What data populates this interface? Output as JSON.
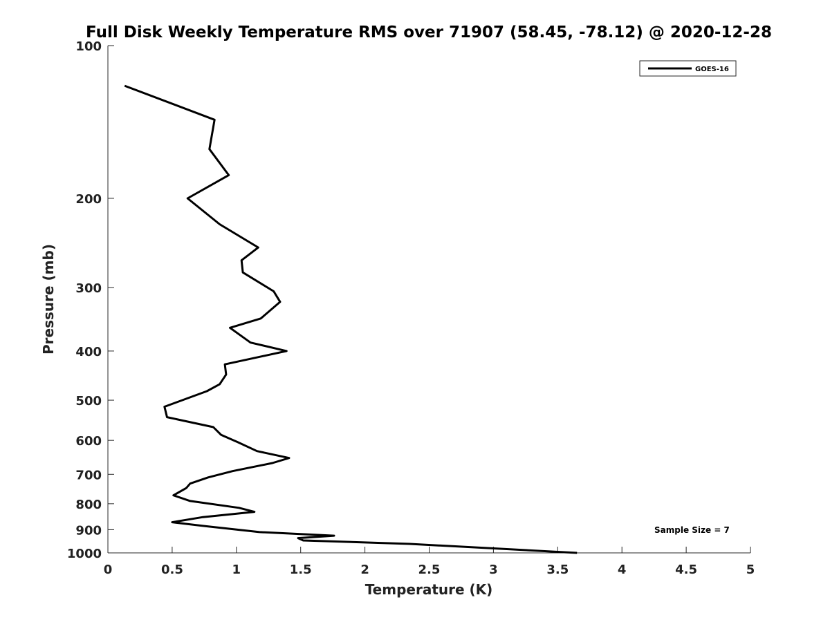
{
  "chart_data": {
    "type": "line",
    "title": "Full Disk Weekly Temperature RMS over 71907 (58.45, -78.12) @ 2020-12-28",
    "xlabel": "Temperature (K)",
    "ylabel": "Pressure (mb)",
    "xlim": [
      0,
      5
    ],
    "ylim": [
      100,
      1000
    ],
    "y_scale": "log",
    "y_reversed": true,
    "grid": false,
    "legend_position": "top-right",
    "x_ticks": [
      "0",
      "0.5",
      "1",
      "1.5",
      "2",
      "2.5",
      "3",
      "3.5",
      "4",
      "4.5",
      "5"
    ],
    "y_ticks": [
      "100",
      "200",
      "300",
      "400",
      "500",
      "600",
      "700",
      "800",
      "900",
      "1000"
    ],
    "annotation": "Sample Size = 7",
    "series": [
      {
        "name": "GOES-16",
        "color": "#000000",
        "points": [
          [
            0.13,
            120
          ],
          [
            0.83,
            140
          ],
          [
            0.79,
            160
          ],
          [
            0.94,
            180
          ],
          [
            0.62,
            200
          ],
          [
            0.87,
            225
          ],
          [
            1.17,
            250
          ],
          [
            1.04,
            265
          ],
          [
            1.05,
            280
          ],
          [
            1.29,
            305
          ],
          [
            1.34,
            320
          ],
          [
            1.19,
            345
          ],
          [
            0.95,
            360
          ],
          [
            1.11,
            385
          ],
          [
            1.39,
            400
          ],
          [
            0.91,
            425
          ],
          [
            0.92,
            445
          ],
          [
            0.87,
            465
          ],
          [
            0.77,
            480
          ],
          [
            0.44,
            515
          ],
          [
            0.46,
            540
          ],
          [
            0.82,
            565
          ],
          [
            0.88,
            585
          ],
          [
            1.01,
            605
          ],
          [
            1.16,
            630
          ],
          [
            1.41,
            650
          ],
          [
            1.28,
            665
          ],
          [
            0.97,
            690
          ],
          [
            0.78,
            710
          ],
          [
            0.64,
            730
          ],
          [
            0.61,
            745
          ],
          [
            0.51,
            770
          ],
          [
            0.64,
            790
          ],
          [
            1.02,
            815
          ],
          [
            1.14,
            830
          ],
          [
            0.74,
            850
          ],
          [
            0.5,
            870
          ],
          [
            0.75,
            885
          ],
          [
            1.18,
            910
          ],
          [
            1.76,
            925
          ],
          [
            1.48,
            935
          ],
          [
            1.52,
            945
          ],
          [
            2.35,
            960
          ],
          [
            3.65,
            1000
          ]
        ]
      }
    ]
  }
}
